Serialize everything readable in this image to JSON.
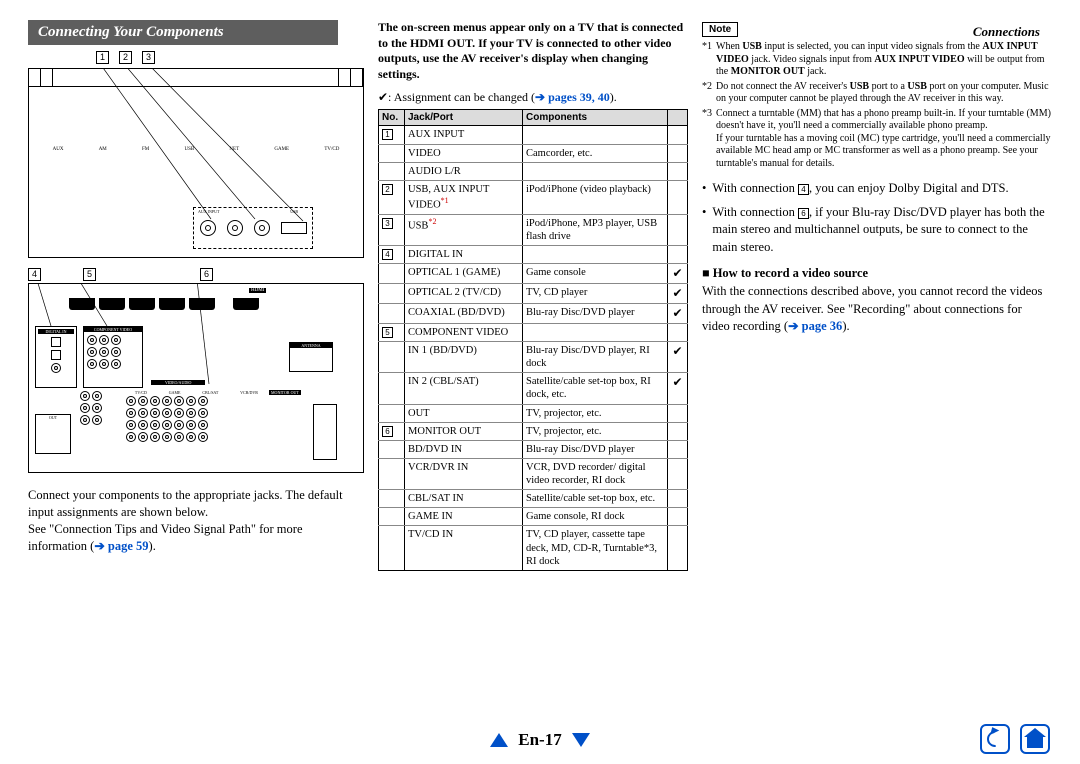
{
  "header_breadcrumb": "Connections",
  "section_title": "Connecting Your Components",
  "callouts_top": [
    "1",
    "2",
    "3"
  ],
  "callouts_bottom": [
    "4",
    "5",
    "6"
  ],
  "left_caption_1": "Connect your components to the appropriate jacks. The default input assignments are shown below.",
  "left_caption_2a": "See \"Connection Tips and Video Signal Path\" for more information (",
  "left_caption_2_link": "➔ page 59",
  "left_caption_2b": ").",
  "mid_bold": "The on-screen menus appear only on a TV that is connected to the HDMI OUT. If your TV is connected to other video outputs, use the AV receiver's display when changing settings.",
  "assign_prefix": "✔: Assignment can be changed (",
  "assign_link": "➔ pages 39, 40",
  "assign_suffix": ").",
  "table": {
    "headers": [
      "No.",
      "Jack/Port",
      "Components",
      ""
    ],
    "rows": [
      {
        "no": "1",
        "jack": "AUX INPUT",
        "comp": "",
        "chk": "",
        "group": true
      },
      {
        "no": "",
        "jack": "VIDEO",
        "comp": "Camcorder, etc.",
        "chk": ""
      },
      {
        "no": "",
        "jack": "AUDIO L/R",
        "comp": "",
        "chk": ""
      },
      {
        "no": "2",
        "jack": "USB, AUX INPUT VIDEO",
        "sup": "*1",
        "comp": "iPod/iPhone (video playback)",
        "chk": "",
        "group": true
      },
      {
        "no": "3",
        "jack": "USB",
        "sup": "*2",
        "comp": "iPod/iPhone, MP3 player, USB flash drive",
        "chk": "",
        "group": true
      },
      {
        "no": "4",
        "jack": "DIGITAL IN",
        "comp": "",
        "chk": "",
        "group": true
      },
      {
        "no": "",
        "jack": "OPTICAL 1 (GAME)",
        "comp": "Game console",
        "chk": "✔"
      },
      {
        "no": "",
        "jack": "OPTICAL 2 (TV/CD)",
        "comp": "TV, CD player",
        "chk": "✔"
      },
      {
        "no": "",
        "jack": "COAXIAL (BD/DVD)",
        "comp": "Blu-ray Disc/DVD player",
        "chk": "✔"
      },
      {
        "no": "5",
        "jack": "COMPONENT VIDEO",
        "comp": "",
        "chk": "",
        "group": true
      },
      {
        "no": "",
        "jack": "IN 1 (BD/DVD)",
        "comp": "Blu-ray Disc/DVD player, RI dock",
        "chk": "✔"
      },
      {
        "no": "",
        "jack": "IN 2 (CBL/SAT)",
        "comp": "Satellite/cable set-top box, RI dock, etc.",
        "chk": "✔"
      },
      {
        "no": "",
        "jack": "OUT",
        "comp": "TV, projector, etc.",
        "chk": ""
      },
      {
        "no": "6",
        "jack": "MONITOR OUT",
        "comp": "TV, projector, etc.",
        "chk": "",
        "group": true
      },
      {
        "no": "",
        "jack": "BD/DVD IN",
        "comp": "Blu-ray Disc/DVD player",
        "chk": ""
      },
      {
        "no": "",
        "jack": "VCR/DVR IN",
        "comp": "VCR, DVD recorder/ digital video recorder, RI dock",
        "chk": ""
      },
      {
        "no": "",
        "jack": "CBL/SAT IN",
        "comp": "Satellite/cable set-top box, etc.",
        "chk": ""
      },
      {
        "no": "",
        "jack": "GAME IN",
        "comp": "Game console, RI dock",
        "chk": ""
      },
      {
        "no": "",
        "jack": "TV/CD IN",
        "comp": "TV, CD player, cassette tape deck, MD, CD-R, Turntable*3, RI dock",
        "chk": ""
      }
    ]
  },
  "note_label": "Note",
  "notes": [
    {
      "k": "*1",
      "t": "When USB input is selected, you can input video signals from the AUX INPUT VIDEO jack. Video signals input from AUX INPUT VIDEO will be output from the MONITOR OUT jack."
    },
    {
      "k": "*2",
      "t": "Do not connect the AV receiver's USB port to a USB port on your computer. Music on your computer cannot be played through the AV receiver in this way."
    },
    {
      "k": "*3",
      "t": "Connect a turntable (MM) that has a phono preamp built-in. If your turntable (MM) doesn't have it, you'll need a commercially available phono preamp.\nIf your turntable has a moving coil (MC) type cartridge, you'll need a commercially available MC head amp or MC transformer as well as a phono preamp. See your turntable's manual for details."
    }
  ],
  "bullet1a": "With connection ",
  "bullet1_num": "4",
  "bullet1b": ", you can enjoy Dolby Digital and DTS.",
  "bullet2a": "With connection ",
  "bullet2_num": "6",
  "bullet2b": ", if your Blu-ray Disc/DVD player has both the main stereo and multichannel outputs, be sure to connect to the main stereo.",
  "howto_title": "How to record a video source",
  "howto_body_a": "With the connections described above, you cannot record the videos through the AV receiver. See \"Recording\" about connections for video recording (",
  "howto_link": "➔ page 36",
  "howto_body_b": ").",
  "page_number": "En-17"
}
